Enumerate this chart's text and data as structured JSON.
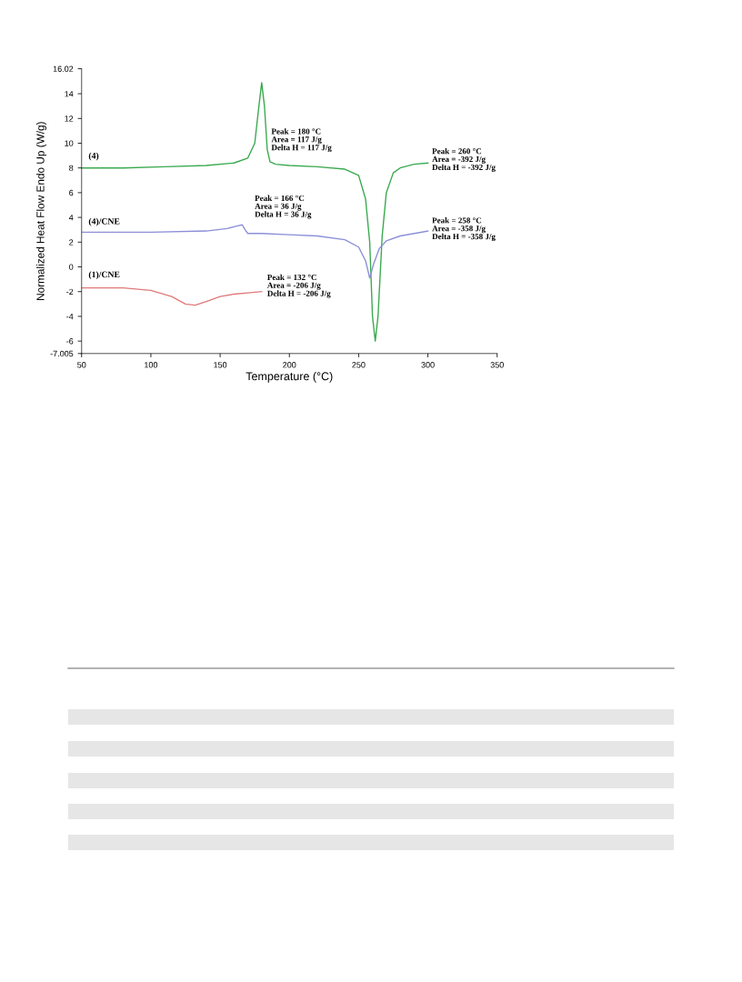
{
  "chart_data": {
    "type": "line",
    "xlabel": "Temperature (°C)",
    "ylabel": "Normalized Heat Flow Endo Up (W/g)",
    "xlim": [
      50,
      350
    ],
    "xticks": [
      50,
      100,
      150,
      200,
      250,
      300,
      350
    ],
    "ylim": [
      -7.005,
      16.02
    ],
    "yticks": [
      -7.005,
      -6,
      -4,
      -2,
      0,
      2,
      4,
      6,
      8,
      10,
      12,
      14,
      16.02
    ],
    "grid": false,
    "legend": false,
    "marker": "none",
    "line_style": "solid",
    "series": [
      {
        "name": "(4)",
        "color": "#3aaa50",
        "x": [
          50,
          80,
          110,
          140,
          160,
          170,
          175,
          178,
          180,
          182,
          184,
          186,
          190,
          200,
          220,
          240,
          250,
          255,
          258,
          260,
          262,
          264,
          267,
          270,
          275,
          280,
          290,
          300
        ],
        "values": [
          8.0,
          8.0,
          8.1,
          8.2,
          8.4,
          8.8,
          10.0,
          13.0,
          14.9,
          13.0,
          9.5,
          8.5,
          8.3,
          8.2,
          8.1,
          7.9,
          7.4,
          5.5,
          2.0,
          -4.0,
          -6.0,
          -4.0,
          2.5,
          6.0,
          7.6,
          8.0,
          8.3,
          8.4
        ]
      },
      {
        "name": "(4)/CNE",
        "color": "#8c8fd8",
        "x": [
          50,
          100,
          140,
          155,
          162,
          166,
          168,
          170,
          180,
          200,
          220,
          240,
          250,
          255,
          258,
          261,
          265,
          270,
          280,
          300
        ],
        "values": [
          2.8,
          2.8,
          2.9,
          3.1,
          3.3,
          3.4,
          3.0,
          2.7,
          2.7,
          2.6,
          2.5,
          2.2,
          1.6,
          0.5,
          -0.9,
          0.3,
          1.5,
          2.1,
          2.5,
          2.9
        ]
      },
      {
        "name": "(1)/CNE",
        "color": "#e07a7a",
        "x": [
          50,
          80,
          100,
          115,
          125,
          132,
          140,
          150,
          160,
          170,
          180
        ],
        "values": [
          -1.7,
          -1.7,
          -1.9,
          -2.4,
          -3.0,
          -3.1,
          -2.8,
          -2.4,
          -2.2,
          -2.1,
          -2.0
        ]
      }
    ],
    "annotations": [
      "Peak = 180 °C\nArea = 117 J/g\nDelta H = 117 J/g",
      "Peak = 166 °C\nArea = 36 J/g\nDelta H = 36 J/g",
      "Peak = 132 °C\nArea = -206 J/g\nDelta H = -206 J/g",
      "Peak = 260 °C\nArea = -392 J/g\nDelta H = -392 J/g",
      "Peak = 258 °C\nArea = -358 J/g\nDelta H = -358 J/g"
    ]
  }
}
